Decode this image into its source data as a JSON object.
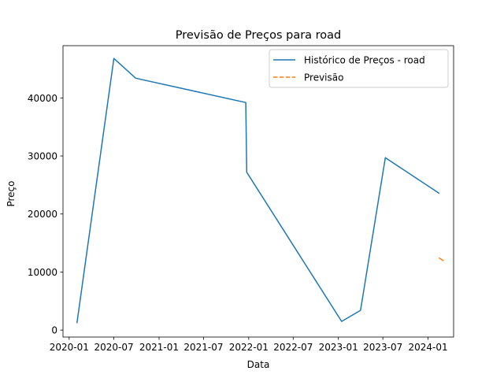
{
  "chart_data": {
    "type": "line",
    "title": "Previsão de Preços para road",
    "xlabel": "Data",
    "ylabel": "Preço",
    "xlim": [
      "2019-12-07",
      "2024-04-14"
    ],
    "ylim": [
      -1200,
      49000
    ],
    "x_ticks": [
      {
        "date": "2020-01-01",
        "label": "2020-01"
      },
      {
        "date": "2020-07-01",
        "label": "2020-07"
      },
      {
        "date": "2021-01-01",
        "label": "2021-01"
      },
      {
        "date": "2021-07-01",
        "label": "2021-07"
      },
      {
        "date": "2022-01-01",
        "label": "2022-01"
      },
      {
        "date": "2022-07-01",
        "label": "2022-07"
      },
      {
        "date": "2023-01-01",
        "label": "2023-01"
      },
      {
        "date": "2023-07-01",
        "label": "2023-07"
      },
      {
        "date": "2024-01-01",
        "label": "2024-01"
      }
    ],
    "y_ticks": [
      {
        "value": 0,
        "label": "0"
      },
      {
        "value": 10000,
        "label": "10000"
      },
      {
        "value": 20000,
        "label": "20000"
      },
      {
        "value": 30000,
        "label": "30000"
      },
      {
        "value": 40000,
        "label": "40000"
      }
    ],
    "grid": false,
    "legend_position": "top-right",
    "series": [
      {
        "name": "Histórico de Preços - road",
        "color": "#1f77b4",
        "style": "solid",
        "points": [
          {
            "x": "2020-02-02",
            "y": 1300
          },
          {
            "x": "2020-07-01",
            "y": 46800
          },
          {
            "x": "2020-09-28",
            "y": 43400
          },
          {
            "x": "2021-12-20",
            "y": 39200
          },
          {
            "x": "2021-12-24",
            "y": 27200
          },
          {
            "x": "2023-01-14",
            "y": 1500
          },
          {
            "x": "2023-04-01",
            "y": 3400
          },
          {
            "x": "2023-07-11",
            "y": 29700
          },
          {
            "x": "2024-02-14",
            "y": 23600
          }
        ]
      },
      {
        "name": "Previsão",
        "color": "#ff7f0e",
        "style": "dashed",
        "points": [
          {
            "x": "2024-02-16",
            "y": 12400
          },
          {
            "x": "2024-03-02",
            "y": 12000
          }
        ]
      }
    ]
  }
}
